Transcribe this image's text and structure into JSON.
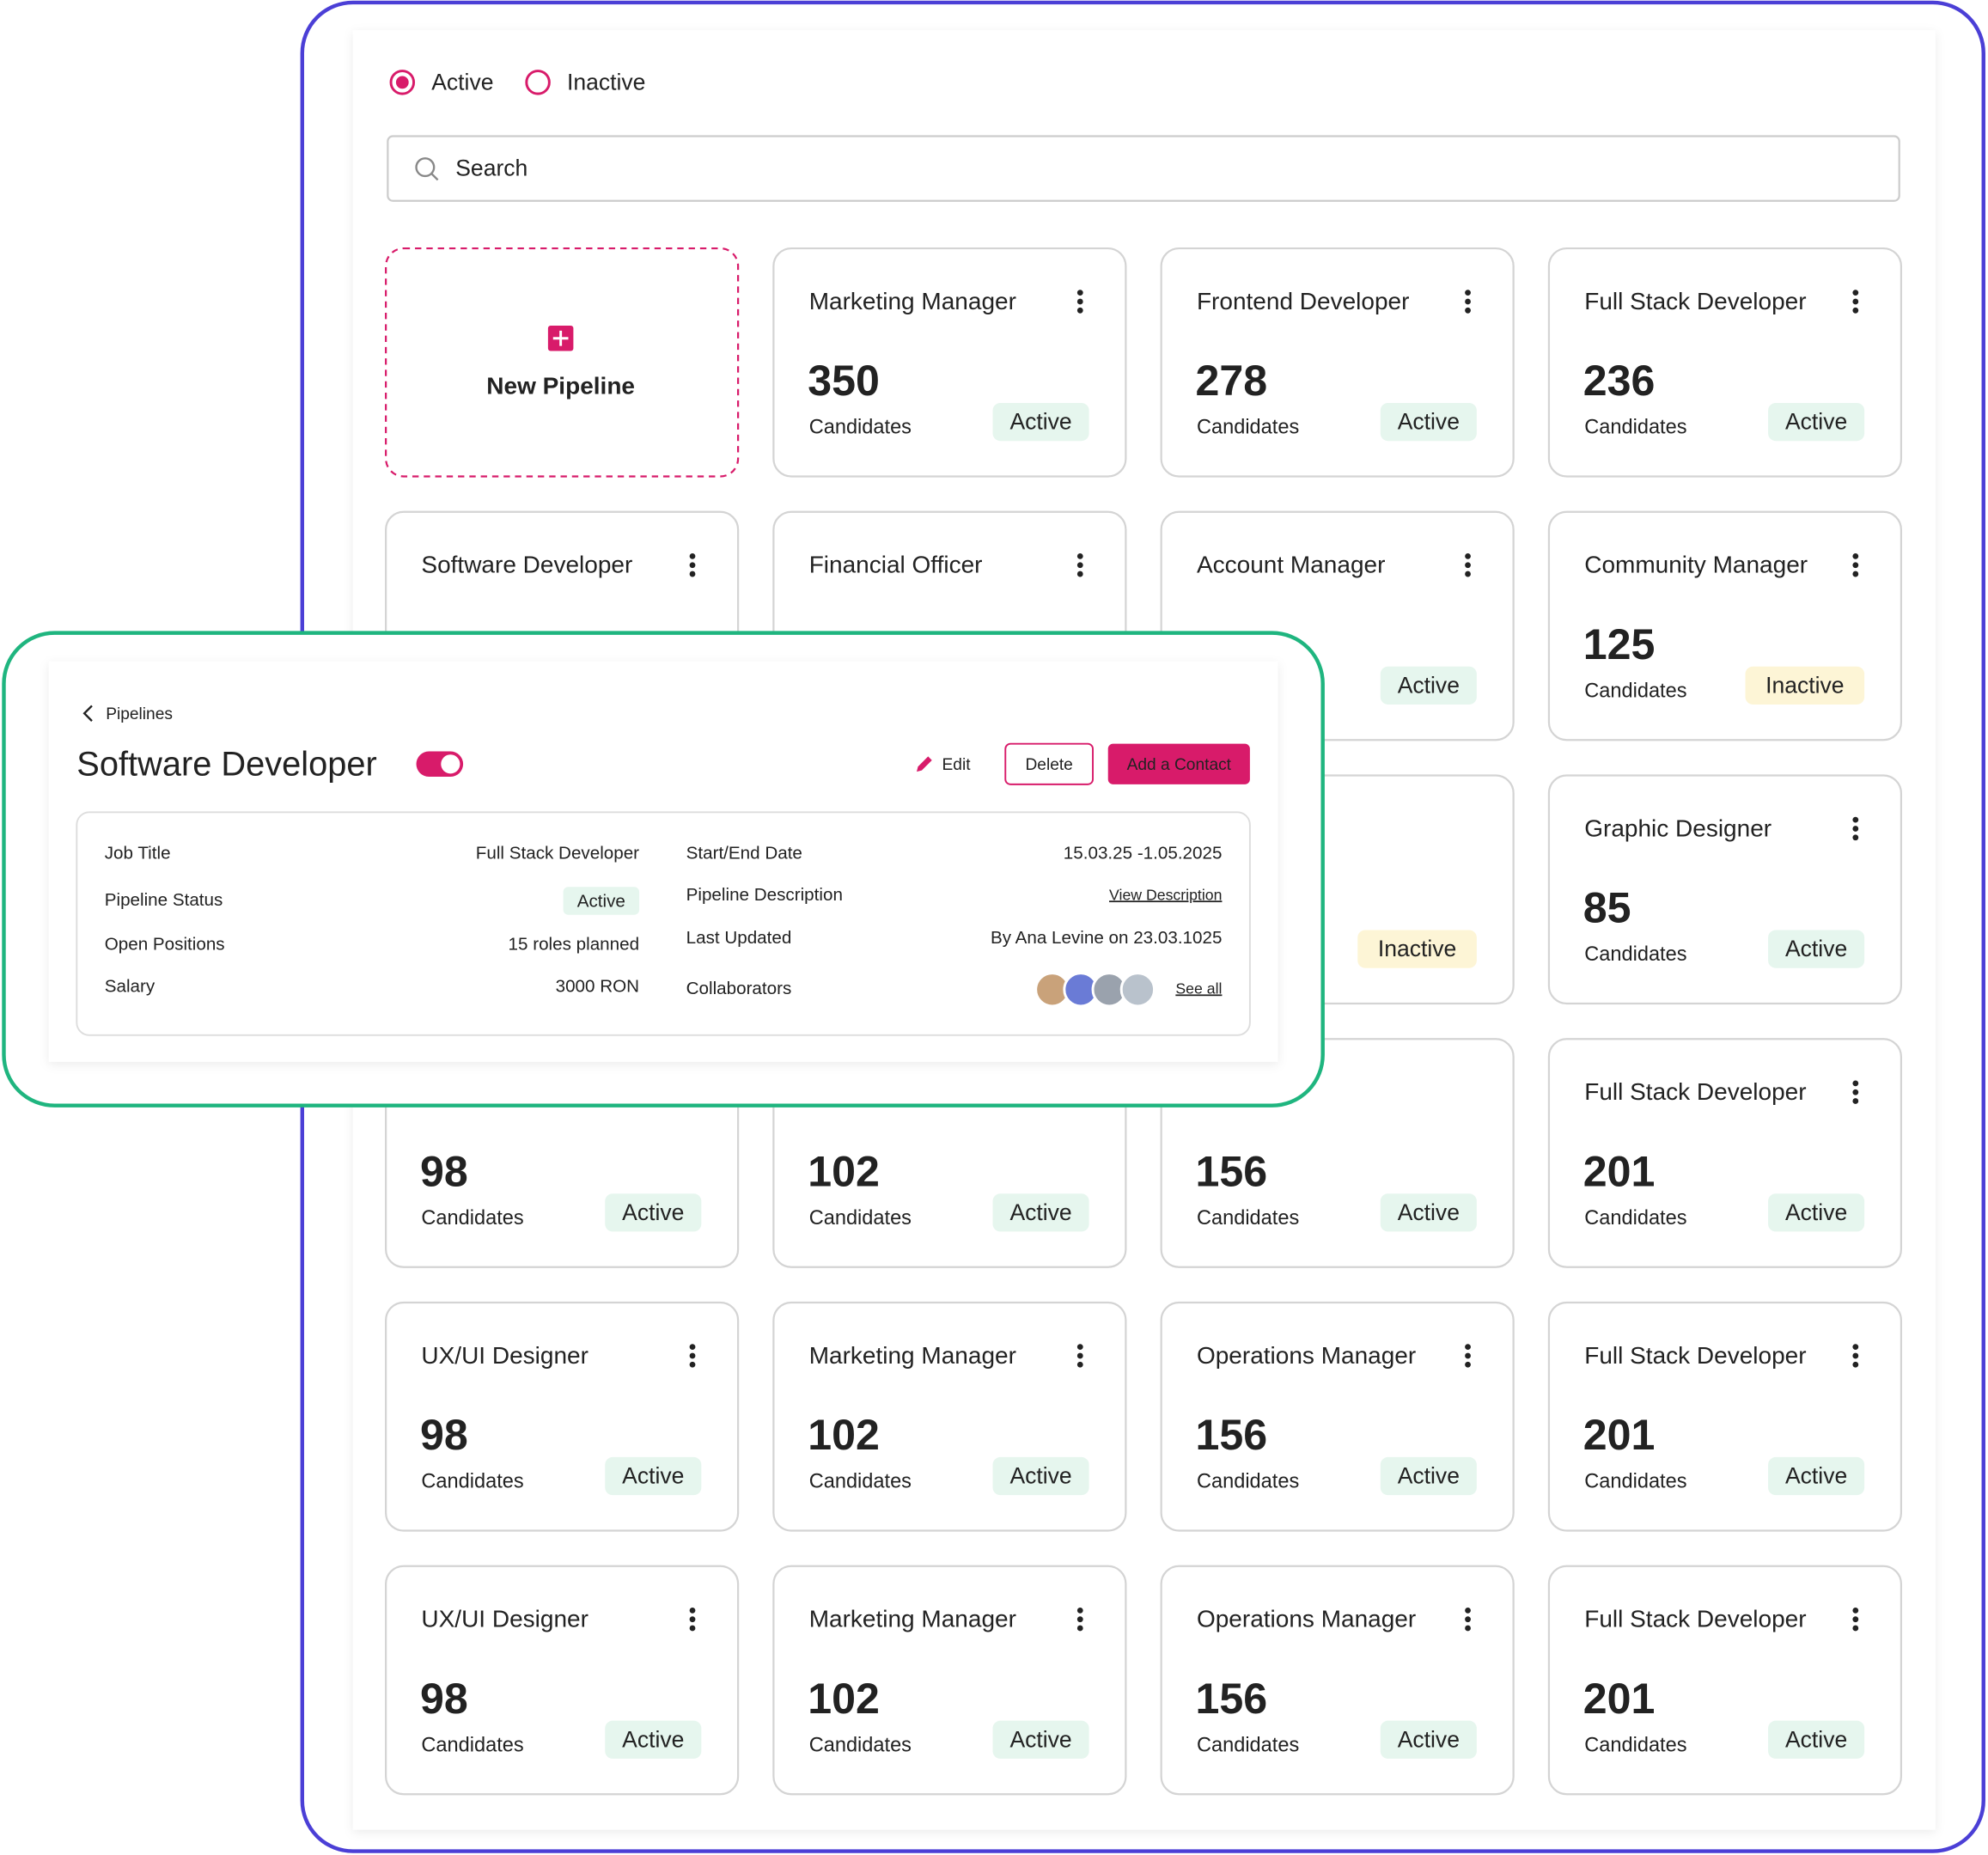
{
  "filters": {
    "options": [
      "Active",
      "Inactive"
    ],
    "selected_index": 0
  },
  "search": {
    "placeholder": "Search"
  },
  "new_pipeline": {
    "label": "New Pipeline"
  },
  "badge_colors": {
    "Active": {
      "text": "#2bb673",
      "bg": "#e6f6ee"
    },
    "Inactive": {
      "text": "#f0c020",
      "bg": "#fdf5d6"
    }
  },
  "cards": [
    {
      "title": "Marketing Manager",
      "count": "350",
      "label": "Candidates",
      "status": "Active"
    },
    {
      "title": "Frontend Developer",
      "count": "278",
      "label": "Candidates",
      "status": "Active"
    },
    {
      "title": "Full Stack Developer",
      "count": "236",
      "label": "Candidates",
      "status": "Active"
    },
    {
      "title": "Software Developer"
    },
    {
      "title": "Financial Officer"
    },
    {
      "title": "Account Manager",
      "status": "Active"
    },
    {
      "title": "Community Manager",
      "count": "125",
      "label": "Candidates",
      "status": "Inactive"
    },
    null,
    null,
    {
      "status": "Inactive"
    },
    {
      "title": "Graphic Designer",
      "count": "85",
      "label": "Candidates",
      "status": "Active"
    },
    {
      "count": "98",
      "label": "Candidates",
      "status": "Active"
    },
    {
      "count": "102",
      "label": "Candidates",
      "status": "Active"
    },
    {
      "count": "156",
      "label": "Candidates",
      "status": "Active"
    },
    {
      "title": "Full Stack Developer",
      "count": "201",
      "label": "Candidates",
      "status": "Active"
    },
    {
      "title": "UX/UI Designer",
      "count": "98",
      "label": "Candidates",
      "status": "Active"
    },
    {
      "title": "Marketing Manager",
      "count": "102",
      "label": "Candidates",
      "status": "Active"
    },
    {
      "title": "Operations Manager",
      "count": "156",
      "label": "Candidates",
      "status": "Active"
    },
    {
      "title": "Full Stack Developer",
      "count": "201",
      "label": "Candidates",
      "status": "Active"
    },
    {
      "title": "UX/UI Designer",
      "count": "98",
      "label": "Candidates",
      "status": "Active"
    },
    {
      "title": "Marketing Manager",
      "count": "102",
      "label": "Candidates",
      "status": "Active"
    },
    {
      "title": "Operations Manager",
      "count": "156",
      "label": "Candidates",
      "status": "Active"
    },
    {
      "title": "Full Stack Developer",
      "count": "201",
      "label": "Candidates",
      "status": "Active"
    }
  ],
  "detail": {
    "breadcrumb": "Pipelines",
    "title": "Software Developer",
    "toggle_on": true,
    "actions": {
      "edit": "Edit",
      "delete": "Delete",
      "add": "Add a Contact"
    },
    "left_fields": [
      {
        "label": "Job Title",
        "value": "Full Stack Developer"
      },
      {
        "label": "Pipeline Status",
        "value": "Active",
        "style": "badge"
      },
      {
        "label": "Open Positions",
        "value": "15 roles planned"
      },
      {
        "label": "Salary",
        "value": "3000 RON"
      }
    ],
    "right_fields": [
      {
        "label": "Start/End Date",
        "value": "15.03.25 -1.05.2025"
      },
      {
        "label": "Pipeline Description",
        "value": "View Description",
        "style": "link"
      },
      {
        "label": "Last Updated",
        "value": "By Ana Levine on 23.03.1025"
      },
      {
        "label": "Collaborators",
        "value": "See all",
        "style": "link"
      }
    ]
  }
}
